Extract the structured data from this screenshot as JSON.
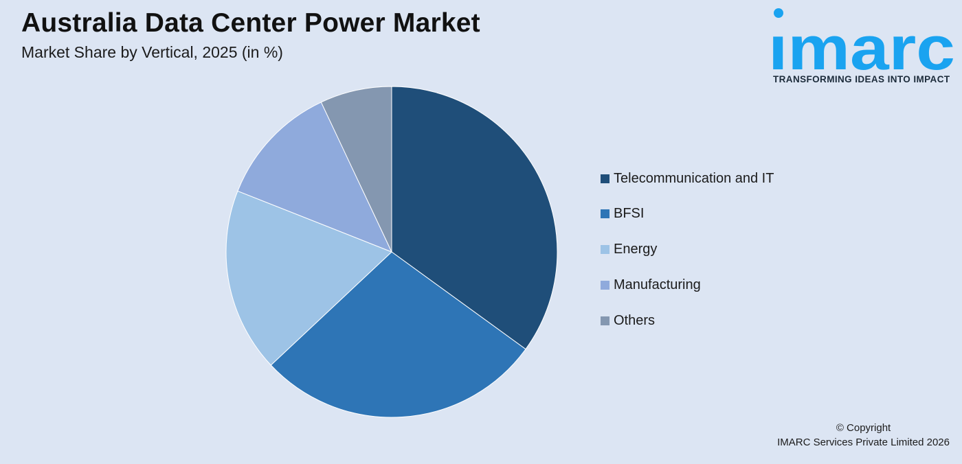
{
  "header": {
    "title": "Australia Data Center Power Market",
    "subtitle": "Market Share by Vertical, 2025 (in %)"
  },
  "logo": {
    "wordmark": "imarc",
    "tagline": "TRANSFORMING IDEAS INTO IMPACT",
    "color": "#1aa3f0"
  },
  "chart_data": {
    "type": "pie",
    "categories": [
      "Telecommunication and IT",
      "BFSI",
      "Energy",
      "Manufacturing",
      "Others"
    ],
    "values": [
      35,
      28,
      18,
      12,
      7
    ],
    "colors": [
      "#1f4e79",
      "#2e75b6",
      "#9dc3e6",
      "#8faadc",
      "#8497b0"
    ],
    "start_angle_deg": 0,
    "direction": "clockwise",
    "legend_position": "right"
  },
  "footer": {
    "copyright_line1": "© Copyright",
    "copyright_line2": "IMARC Services Private Limited 2026"
  }
}
